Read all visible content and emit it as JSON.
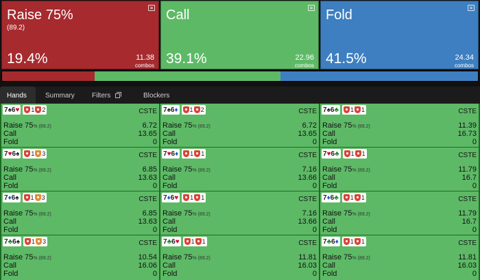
{
  "actions": [
    {
      "title": "Raise 75%",
      "sub": "(89.2)",
      "pct": "19.4%",
      "combos": "11.38",
      "combos_label": "combos",
      "color": "#a62a2e"
    },
    {
      "title": "Call",
      "sub": "",
      "pct": "39.1%",
      "combos": "22.96",
      "combos_label": "combos",
      "color": "#5db966"
    },
    {
      "title": "Fold",
      "sub": "",
      "pct": "41.5%",
      "combos": "24.34",
      "combos_label": "combos",
      "color": "#3d7fc0"
    }
  ],
  "frequency_bar": [
    {
      "action": "Raise 75%",
      "fraction": 0.194,
      "color": "#a62a2e"
    },
    {
      "action": "Call",
      "fraction": 0.391,
      "color": "#5db966"
    },
    {
      "action": "Fold",
      "fraction": 0.415,
      "color": "#3d7fc0"
    }
  ],
  "tabs": [
    {
      "label": "Hands",
      "active": true
    },
    {
      "label": "Summary",
      "active": false
    },
    {
      "label": "Filters",
      "active": false,
      "icon": "copy-icon"
    },
    {
      "label": "Blockers",
      "active": false
    }
  ],
  "labels": {
    "raise": "Raise 75",
    "raise_size": "% (89.2)",
    "call": "Call",
    "fold": "Fold",
    "tag": "CSTE"
  },
  "suit_colors": {
    "♠": "#222222",
    "♥": "#c8102e",
    "♦": "#1f5fc4",
    "♣": "#1e8a2b"
  },
  "blocker_colors": {
    "red": "#d9453a",
    "orange": "#e48a3a"
  },
  "cells": [
    {
      "cards": [
        [
          "7",
          "♠"
        ],
        [
          "6",
          "♥"
        ]
      ],
      "b1c": "red",
      "b1": "1",
      "b2c": "red",
      "b2": "2",
      "raise": "6.72",
      "call": "13.65",
      "fold": "0"
    },
    {
      "cards": [
        [
          "7",
          "♠"
        ],
        [
          "6",
          "♦"
        ]
      ],
      "b1c": "red",
      "b1": "1",
      "b2c": "red",
      "b2": "2",
      "raise": "6.72",
      "call": "13.65",
      "fold": "0"
    },
    {
      "cards": [
        [
          "7",
          "♠"
        ],
        [
          "6",
          "♣"
        ]
      ],
      "b1c": "red",
      "b1": "1",
      "b2c": "red",
      "b2": "1",
      "raise": "11.39",
      "call": "16.73",
      "fold": "0"
    },
    {
      "cards": [
        [
          "7",
          "♥"
        ],
        [
          "6",
          "♠"
        ]
      ],
      "b1c": "red",
      "b1": "1",
      "b2c": "orange",
      "b2": "3",
      "raise": "6.85",
      "call": "13.63",
      "fold": "0"
    },
    {
      "cards": [
        [
          "7",
          "♥"
        ],
        [
          "6",
          "♦"
        ]
      ],
      "b1c": "red",
      "b1": "1",
      "b2c": "red",
      "b2": "1",
      "raise": "7.16",
      "call": "13.66",
      "fold": "0"
    },
    {
      "cards": [
        [
          "7",
          "♥"
        ],
        [
          "6",
          "♣"
        ]
      ],
      "b1c": "red",
      "b1": "1",
      "b2c": "red",
      "b2": "1",
      "raise": "11.79",
      "call": "16.7",
      "fold": "0"
    },
    {
      "cards": [
        [
          "7",
          "♦"
        ],
        [
          "6",
          "♠"
        ]
      ],
      "b1c": "red",
      "b1": "1",
      "b2c": "orange",
      "b2": "3",
      "raise": "6.85",
      "call": "13.63",
      "fold": "0"
    },
    {
      "cards": [
        [
          "7",
          "♦"
        ],
        [
          "6",
          "♥"
        ]
      ],
      "b1c": "red",
      "b1": "1",
      "b2c": "red",
      "b2": "1",
      "raise": "7.16",
      "call": "13.66",
      "fold": "0"
    },
    {
      "cards": [
        [
          "7",
          "♦"
        ],
        [
          "6",
          "♣"
        ]
      ],
      "b1c": "red",
      "b1": "1",
      "b2c": "red",
      "b2": "1",
      "raise": "11.79",
      "call": "16.7",
      "fold": "0"
    },
    {
      "cards": [
        [
          "7",
          "♣"
        ],
        [
          "6",
          "♠"
        ]
      ],
      "b1c": "red",
      "b1": "1",
      "b2c": "orange",
      "b2": "3",
      "raise": "10.54",
      "call": "16.06",
      "fold": "0"
    },
    {
      "cards": [
        [
          "7",
          "♣"
        ],
        [
          "6",
          "♥"
        ]
      ],
      "b1c": "red",
      "b1": "1",
      "b2c": "red",
      "b2": "1",
      "raise": "11.81",
      "call": "16.03",
      "fold": "0"
    },
    {
      "cards": [
        [
          "7",
          "♣"
        ],
        [
          "6",
          "♦"
        ]
      ],
      "b1c": "red",
      "b1": "1",
      "b2c": "red",
      "b2": "1",
      "raise": "11.81",
      "call": "16.03",
      "fold": "0"
    }
  ]
}
